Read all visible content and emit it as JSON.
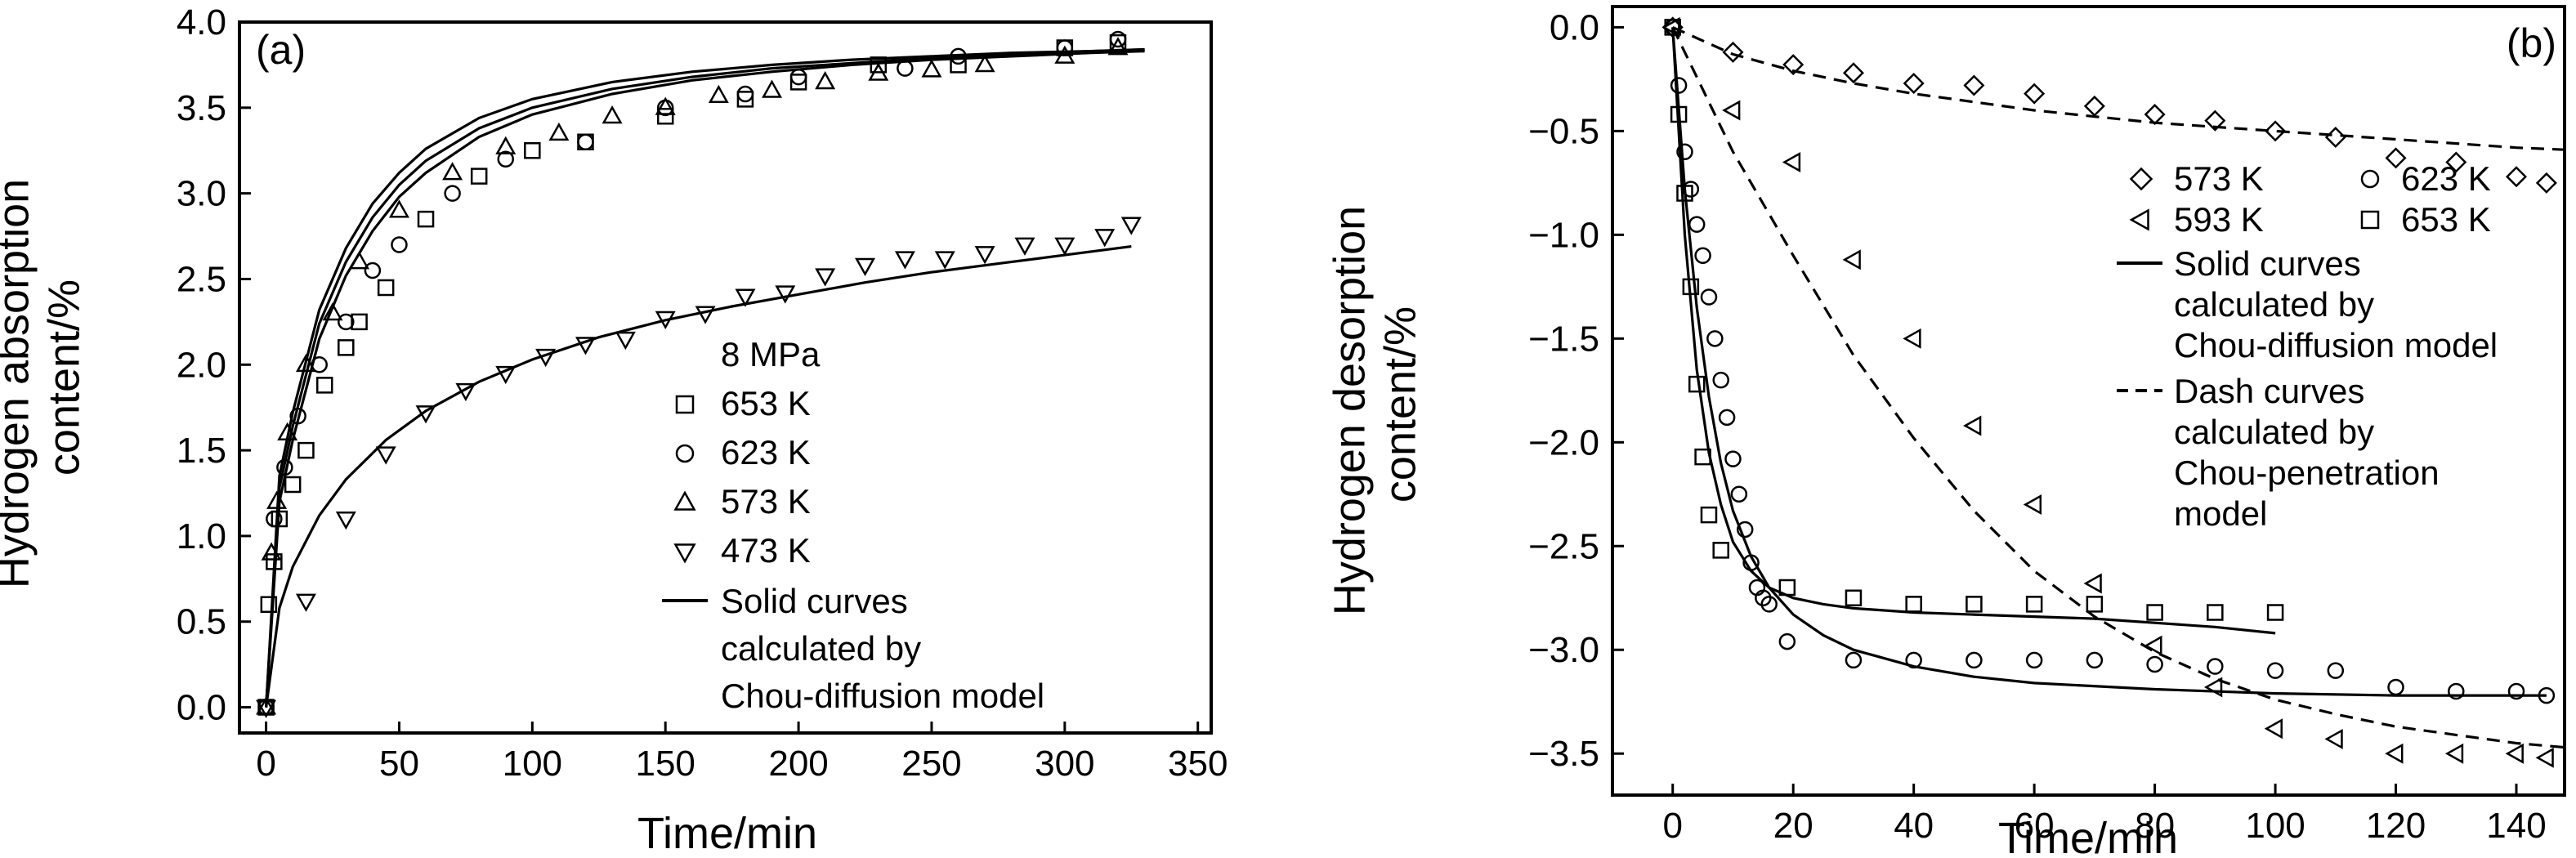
{
  "chart_data": [
    {
      "id": "a",
      "type": "scatter",
      "panel_label": "(a)",
      "xlabel": "Time/min",
      "ylabel": [
        "Hydrogen absorption",
        "content/%"
      ],
      "xlim": [
        -10,
        355
      ],
      "ylim": [
        -0.15,
        4.0
      ],
      "xticks": [
        0,
        50,
        100,
        150,
        200,
        250,
        300,
        350
      ],
      "xtick_labels": [
        "0",
        "50",
        "100",
        "150",
        "200",
        "250",
        "300",
        "350"
      ],
      "yticks": [
        0.0,
        0.5,
        1.0,
        1.5,
        2.0,
        2.5,
        3.0,
        3.5,
        4.0
      ],
      "ytick_labels": [
        "0.0",
        "0.5",
        "1.0",
        "1.5",
        "2.0",
        "2.5",
        "3.0",
        "3.5",
        "4.0"
      ],
      "grid": false,
      "legend_position": "lower-right",
      "legend_title": "8 MPa",
      "series": [
        {
          "name": "653 K",
          "marker": "square",
          "x": [
            0,
            1,
            3,
            5,
            10,
            15,
            22,
            30,
            35,
            45,
            60,
            80,
            100,
            120,
            150,
            180,
            200,
            230,
            260,
            300,
            320
          ],
          "y": [
            0.0,
            0.6,
            0.85,
            1.1,
            1.3,
            1.5,
            1.88,
            2.1,
            2.25,
            2.45,
            2.85,
            3.1,
            3.25,
            3.3,
            3.45,
            3.55,
            3.65,
            3.75,
            3.75,
            3.85,
            3.88
          ]
        },
        {
          "name": "623 K",
          "marker": "circle",
          "x": [
            0,
            3,
            7,
            12,
            20,
            30,
            40,
            50,
            70,
            90,
            120,
            150,
            180,
            200,
            240,
            260,
            300,
            320
          ],
          "y": [
            0.0,
            1.1,
            1.4,
            1.7,
            2.0,
            2.25,
            2.55,
            2.7,
            3.0,
            3.2,
            3.3,
            3.5,
            3.58,
            3.68,
            3.73,
            3.8,
            3.85,
            3.9
          ]
        },
        {
          "name": "573 K",
          "marker": "triangle-up",
          "x": [
            0,
            2,
            4,
            8,
            15,
            25,
            35,
            50,
            70,
            90,
            110,
            130,
            150,
            170,
            190,
            210,
            230,
            250,
            270,
            300,
            320
          ],
          "y": [
            0.0,
            0.9,
            1.2,
            1.6,
            2.0,
            2.3,
            2.6,
            2.9,
            3.12,
            3.27,
            3.35,
            3.45,
            3.5,
            3.57,
            3.6,
            3.65,
            3.7,
            3.72,
            3.75,
            3.8,
            3.85
          ]
        },
        {
          "name": "473 K",
          "marker": "triangle-down",
          "x": [
            0,
            15,
            30,
            45,
            60,
            75,
            90,
            105,
            120,
            135,
            150,
            165,
            180,
            195,
            210,
            225,
            240,
            255,
            270,
            285,
            300,
            315,
            325
          ],
          "y": [
            0.0,
            0.62,
            1.1,
            1.48,
            1.72,
            1.85,
            1.95,
            2.05,
            2.12,
            2.15,
            2.27,
            2.3,
            2.4,
            2.42,
            2.52,
            2.58,
            2.62,
            2.62,
            2.65,
            2.7,
            2.7,
            2.75,
            2.82
          ]
        }
      ],
      "fits": [
        {
          "x": [
            0,
            5,
            10,
            20,
            30,
            40,
            50,
            60,
            80,
            100,
            130,
            160,
            190,
            220,
            250,
            280,
            310,
            330
          ],
          "y": [
            0.0,
            1.35,
            1.72,
            2.32,
            2.68,
            2.94,
            3.12,
            3.26,
            3.44,
            3.55,
            3.65,
            3.71,
            3.75,
            3.78,
            3.8,
            3.82,
            3.83,
            3.84
          ]
        },
        {
          "x": [
            0,
            5,
            10,
            20,
            30,
            40,
            50,
            60,
            80,
            100,
            130,
            160,
            190,
            220,
            250,
            280,
            310,
            330
          ],
          "y": [
            0.0,
            1.28,
            1.64,
            2.24,
            2.6,
            2.86,
            3.05,
            3.19,
            3.38,
            3.5,
            3.61,
            3.68,
            3.73,
            3.76,
            3.79,
            3.81,
            3.83,
            3.84
          ]
        },
        {
          "x": [
            0,
            5,
            10,
            20,
            30,
            40,
            50,
            60,
            80,
            100,
            130,
            160,
            190,
            220,
            250,
            280,
            310,
            330
          ],
          "y": [
            0.0,
            1.2,
            1.56,
            2.15,
            2.52,
            2.78,
            2.98,
            3.12,
            3.33,
            3.46,
            3.58,
            3.66,
            3.71,
            3.75,
            3.78,
            3.8,
            3.82,
            3.83
          ]
        },
        {
          "x": [
            0,
            5,
            10,
            20,
            30,
            45,
            60,
            80,
            100,
            125,
            150,
            175,
            200,
            225,
            250,
            275,
            300,
            325
          ],
          "y": [
            0.0,
            0.58,
            0.82,
            1.12,
            1.33,
            1.56,
            1.73,
            1.9,
            2.03,
            2.16,
            2.26,
            2.34,
            2.41,
            2.48,
            2.54,
            2.59,
            2.64,
            2.69
          ]
        }
      ],
      "legend_fit_text": [
        "Solid curves",
        "calculated by",
        "Chou-diffusion model"
      ]
    },
    {
      "id": "b",
      "type": "scatter",
      "panel_label": "(b)",
      "xlabel": "Time/min",
      "ylabel": [
        "Hydrogen desorption",
        "content/%"
      ],
      "xlim": [
        -10,
        148
      ],
      "ylim": [
        -3.7,
        0.1
      ],
      "xticks": [
        0,
        20,
        40,
        60,
        80,
        100,
        120,
        140
      ],
      "xtick_labels": [
        "0",
        "20",
        "40",
        "60",
        "80",
        "100",
        "120",
        "140"
      ],
      "yticks": [
        0.0,
        -0.5,
        -1.0,
        -1.5,
        -2.0,
        -2.5,
        -3.0,
        -3.5
      ],
      "ytick_labels": [
        "0.0",
        "−0.5",
        "−1.0",
        "−1.5",
        "−2.0",
        "−2.5",
        "−3.0",
        "−3.5"
      ],
      "grid": false,
      "legend_position": "upper-right",
      "series": [
        {
          "name": "573 K",
          "marker": "diamond",
          "x": [
            0,
            10,
            20,
            30,
            40,
            50,
            60,
            70,
            80,
            90,
            100,
            110,
            120,
            130,
            140,
            145
          ],
          "y": [
            0.0,
            -0.12,
            -0.18,
            -0.22,
            -0.27,
            -0.28,
            -0.32,
            -0.38,
            -0.42,
            -0.45,
            -0.5,
            -0.53,
            -0.63,
            -0.65,
            -0.72,
            -0.75
          ]
        },
        {
          "name": "593 K",
          "marker": "triangle-left",
          "x": [
            0,
            10,
            20,
            30,
            40,
            50,
            60,
            70,
            80,
            90,
            100,
            110,
            120,
            130,
            140,
            145
          ],
          "y": [
            0.0,
            -0.4,
            -0.65,
            -1.12,
            -1.5,
            -1.92,
            -2.3,
            -2.68,
            -2.98,
            -3.18,
            -3.38,
            -3.43,
            -3.5,
            -3.5,
            -3.5,
            -3.52
          ]
        },
        {
          "name": "623 K",
          "marker": "circle",
          "x": [
            0,
            1,
            2,
            3,
            4,
            5,
            6,
            7,
            8,
            9,
            10,
            11,
            12,
            13,
            14,
            15,
            16,
            19,
            30,
            40,
            50,
            60,
            70,
            80,
            90,
            100,
            110,
            120,
            130,
            140,
            145
          ],
          "y": [
            0.0,
            -0.28,
            -0.6,
            -0.78,
            -0.95,
            -1.1,
            -1.3,
            -1.5,
            -1.7,
            -1.88,
            -2.08,
            -2.25,
            -2.42,
            -2.58,
            -2.7,
            -2.75,
            -2.78,
            -2.96,
            -3.05,
            -3.05,
            -3.05,
            -3.05,
            -3.05,
            -3.07,
            -3.08,
            -3.1,
            -3.1,
            -3.18,
            -3.2,
            -3.2,
            -3.22
          ]
        },
        {
          "name": "653 K",
          "marker": "square",
          "x": [
            0,
            1,
            2,
            3,
            4,
            5,
            6,
            8,
            19,
            30,
            40,
            50,
            60,
            70,
            80,
            90,
            100
          ],
          "y": [
            0.0,
            -0.42,
            -0.8,
            -1.25,
            -1.72,
            -2.07,
            -2.35,
            -2.52,
            -2.7,
            -2.75,
            -2.78,
            -2.78,
            -2.78,
            -2.78,
            -2.82,
            -2.82,
            -2.82
          ]
        }
      ],
      "fits_solid": [
        {
          "x": [
            0,
            2,
            4,
            6,
            8,
            10,
            13,
            16,
            20,
            25,
            30,
            40,
            50,
            60,
            80,
            100,
            120,
            145
          ],
          "y": [
            0.0,
            -0.78,
            -1.35,
            -1.78,
            -2.1,
            -2.33,
            -2.55,
            -2.7,
            -2.83,
            -2.93,
            -3.0,
            -3.08,
            -3.13,
            -3.16,
            -3.19,
            -3.21,
            -3.22,
            -3.22
          ]
        },
        {
          "x": [
            0,
            2,
            4,
            6,
            8,
            10,
            13,
            16,
            20,
            25,
            30,
            40,
            50,
            60,
            70,
            80,
            90,
            100
          ],
          "y": [
            0.0,
            -1.0,
            -1.65,
            -2.05,
            -2.3,
            -2.48,
            -2.62,
            -2.7,
            -2.75,
            -2.78,
            -2.8,
            -2.82,
            -2.83,
            -2.84,
            -2.85,
            -2.87,
            -2.89,
            -2.92
          ]
        }
      ],
      "fits_dash": [
        {
          "x": [
            0,
            10,
            20,
            30,
            40,
            50,
            60,
            70,
            80,
            90,
            100,
            110,
            120,
            130,
            140,
            148
          ],
          "y": [
            0.0,
            -0.13,
            -0.21,
            -0.27,
            -0.32,
            -0.36,
            -0.4,
            -0.43,
            -0.46,
            -0.48,
            -0.5,
            -0.52,
            -0.54,
            -0.56,
            -0.58,
            -0.59
          ]
        },
        {
          "x": [
            0,
            5,
            10,
            20,
            30,
            40,
            50,
            60,
            70,
            80,
            90,
            100,
            110,
            120,
            130,
            140,
            148
          ],
          "y": [
            0.0,
            -0.3,
            -0.6,
            -1.1,
            -1.58,
            -1.98,
            -2.33,
            -2.62,
            -2.84,
            -3.01,
            -3.14,
            -3.24,
            -3.31,
            -3.37,
            -3.41,
            -3.45,
            -3.47
          ]
        }
      ],
      "legend_entries": [
        {
          "label": "573 K",
          "marker": "diamond"
        },
        {
          "label": "623 K",
          "marker": "circle"
        },
        {
          "label": "593 K",
          "marker": "triangle-left"
        },
        {
          "label": "653 K",
          "marker": "square"
        }
      ],
      "legend_solid_text": [
        "Solid curves",
        "calculated by",
        "Chou-diffusion model"
      ],
      "legend_dash_text": [
        "Dash curves",
        "calculated by",
        "Chou-penetration",
        "model"
      ]
    }
  ]
}
